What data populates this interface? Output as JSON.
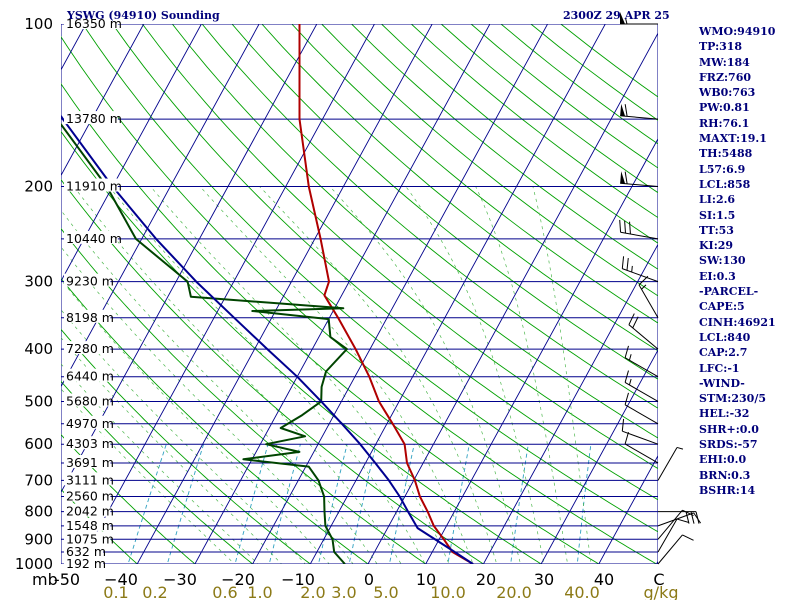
{
  "header": {
    "title_left": "YSWG (94910) Sounding",
    "title_right": "2300Z 29 APR 25"
  },
  "indices": [
    "WMO:94910",
    "TP:318",
    "MW:184",
    "FRZ:760",
    "WB0:763",
    "PW:0.81",
    "RH:76.1",
    "MAXT:19.1",
    "TH:5488",
    "L57:6.9",
    "LCL:858",
    "LI:2.6",
    "SI:1.5",
    "TT:53",
    "KI:29",
    "SW:130",
    "EI:0.3",
    "-PARCEL-",
    "CAPE:5",
    "CINH:46921",
    "LCL:840",
    "CAP:2.7",
    "LFC:-1",
    "-WIND-",
    "STM:230/5",
    "HEL:-32",
    "SHR+:0.0",
    "SRDS:-57",
    "EHI:0.0",
    "BRN:0.3",
    "BSHR:14"
  ],
  "chart_data": {
    "type": "line",
    "subtype": "skew-T log-P sounding",
    "x_axis": {
      "unit_label": "C",
      "ticks": [
        -50,
        -40,
        -30,
        -20,
        -10,
        0,
        10,
        20,
        30,
        40
      ],
      "tick_labels": [
        "-50",
        "−40",
        "−30",
        "−20",
        "−10",
        "0",
        "10",
        "20",
        "30",
        "40",
        "C"
      ]
    },
    "y_axis": {
      "unit_label": "mb",
      "scale": "log",
      "range": [
        1000,
        100
      ],
      "ticks": [
        100,
        200,
        300,
        400,
        500,
        600,
        700,
        800,
        900,
        1000
      ]
    },
    "height_labels": [
      {
        "p": 100,
        "label": "16350 m"
      },
      {
        "p": 150,
        "label": "13780 m"
      },
      {
        "p": 200,
        "label": "11910 m"
      },
      {
        "p": 250,
        "label": "10440 m"
      },
      {
        "p": 300,
        "label": "9230 m"
      },
      {
        "p": 350,
        "label": "8198 m"
      },
      {
        "p": 400,
        "label": "7280 m"
      },
      {
        "p": 450,
        "label": "6440 m"
      },
      {
        "p": 500,
        "label": "5680 m"
      },
      {
        "p": 550,
        "label": "4970 m"
      },
      {
        "p": 600,
        "label": "4303 m"
      },
      {
        "p": 650,
        "label": "3691 m"
      },
      {
        "p": 700,
        "label": "3111 m"
      },
      {
        "p": 750,
        "label": "2560 m"
      },
      {
        "p": 800,
        "label": "2042 m"
      },
      {
        "p": 850,
        "label": "1548 m"
      },
      {
        "p": 900,
        "label": "1075 m"
      },
      {
        "p": 950,
        "label": "632 m"
      },
      {
        "p": 1000,
        "label": "192 m"
      }
    ],
    "mixing_ratio_labels": [
      "0.1",
      "0.2",
      "0.6",
      "1.0",
      "2.0",
      "3.0",
      "5.0",
      "10.0",
      "20.0",
      "40.0",
      "g/kg"
    ],
    "mixing_ratio_values": [
      0.1,
      0.2,
      0.6,
      1.0,
      2.0,
      3.0,
      5.0,
      10.0,
      20.0,
      40.0
    ],
    "series": [
      {
        "name": "temperature",
        "color": "#b00000",
        "points": [
          [
            1000,
            18.2
          ],
          [
            950,
            13.5
          ],
          [
            900,
            10.8
          ],
          [
            850,
            7.8
          ],
          [
            800,
            5.4
          ],
          [
            750,
            2.6
          ],
          [
            700,
            0.2
          ],
          [
            650,
            -2.8
          ],
          [
            600,
            -5.0
          ],
          [
            550,
            -9.0
          ],
          [
            500,
            -13.5
          ],
          [
            450,
            -17.5
          ],
          [
            400,
            -22.5
          ],
          [
            350,
            -28.5
          ],
          [
            318,
            -33.0
          ],
          [
            300,
            -33.5
          ],
          [
            250,
            -39.0
          ],
          [
            200,
            -46.0
          ],
          [
            150,
            -54.0
          ],
          [
            100,
            -63.0
          ]
        ]
      },
      {
        "name": "dewpoint",
        "color": "#004400",
        "points": [
          [
            1000,
            -4.0
          ],
          [
            950,
            -7.0
          ],
          [
            900,
            -8.5
          ],
          [
            850,
            -11.0
          ],
          [
            800,
            -12.5
          ],
          [
            750,
            -14.0
          ],
          [
            700,
            -16.5
          ],
          [
            660,
            -19.5
          ],
          [
            640,
            -31.5
          ],
          [
            620,
            -22.5
          ],
          [
            600,
            -29.0
          ],
          [
            580,
            -23.0
          ],
          [
            560,
            -28.0
          ],
          [
            530,
            -25.5
          ],
          [
            500,
            -23.5
          ],
          [
            470,
            -24.8
          ],
          [
            440,
            -25.5
          ],
          [
            400,
            -24.0
          ],
          [
            380,
            -28.0
          ],
          [
            352,
            -30.0
          ],
          [
            340,
            -44.0
          ],
          [
            336,
            -28.5
          ],
          [
            320,
            -56.0
          ],
          [
            300,
            -58.0
          ],
          [
            250,
            -71.0
          ],
          [
            200,
            -81.0
          ],
          [
            150,
            -96.0
          ],
          [
            100,
            -120.0
          ]
        ]
      },
      {
        "name": "parcel",
        "color": "#000090",
        "points": [
          [
            1000,
            18.2
          ],
          [
            940,
            13.0
          ],
          [
            858,
            5.2
          ],
          [
            800,
            2.0
          ],
          [
            750,
            -0.9
          ],
          [
            700,
            -4.3
          ],
          [
            650,
            -8.3
          ],
          [
            600,
            -12.7
          ],
          [
            550,
            -17.8
          ],
          [
            500,
            -23.5
          ],
          [
            450,
            -30.0
          ],
          [
            400,
            -37.8
          ],
          [
            350,
            -46.5
          ],
          [
            300,
            -56.5
          ],
          [
            250,
            -67.5
          ],
          [
            200,
            -80.0
          ],
          [
            150,
            -95.0
          ],
          [
            115,
            -108.0
          ]
        ]
      }
    ],
    "wind_barbs": [
      {
        "p": 1000,
        "dir": 40,
        "spd": 10
      },
      {
        "p": 950,
        "dir": 30,
        "spd": 10
      },
      {
        "p": 900,
        "dir": 40,
        "spd": 10
      },
      {
        "p": 850,
        "dir": 70,
        "spd": 10
      },
      {
        "p": 800,
        "dir": 90,
        "spd": 30
      },
      {
        "p": 700,
        "dir": 30,
        "spd": 5
      },
      {
        "p": 650,
        "dir": 300,
        "spd": 10
      },
      {
        "p": 600,
        "dir": 290,
        "spd": 10
      },
      {
        "p": 550,
        "dir": 300,
        "spd": 10
      },
      {
        "p": 500,
        "dir": 300,
        "spd": 15
      },
      {
        "p": 450,
        "dir": 300,
        "spd": 15
      },
      {
        "p": 400,
        "dir": 310,
        "spd": 20
      },
      {
        "p": 350,
        "dir": 330,
        "spd": 15
      },
      {
        "p": 300,
        "dir": 290,
        "spd": 25
      },
      {
        "p": 250,
        "dir": 280,
        "spd": 30
      },
      {
        "p": 200,
        "dir": 275,
        "spd": 60
      },
      {
        "p": 150,
        "dir": 275,
        "spd": 60
      },
      {
        "p": 100,
        "dir": 270,
        "spd": 55
      }
    ],
    "colors": {
      "isobars": "#00008b",
      "isotherms": "#00008b",
      "dry_adiabats": "#00a000",
      "moist_adiabats": "#50b850",
      "mixing_ratio": "#2ea0c0",
      "background": "#ffffff",
      "text": "#00007a"
    },
    "grid": true
  }
}
